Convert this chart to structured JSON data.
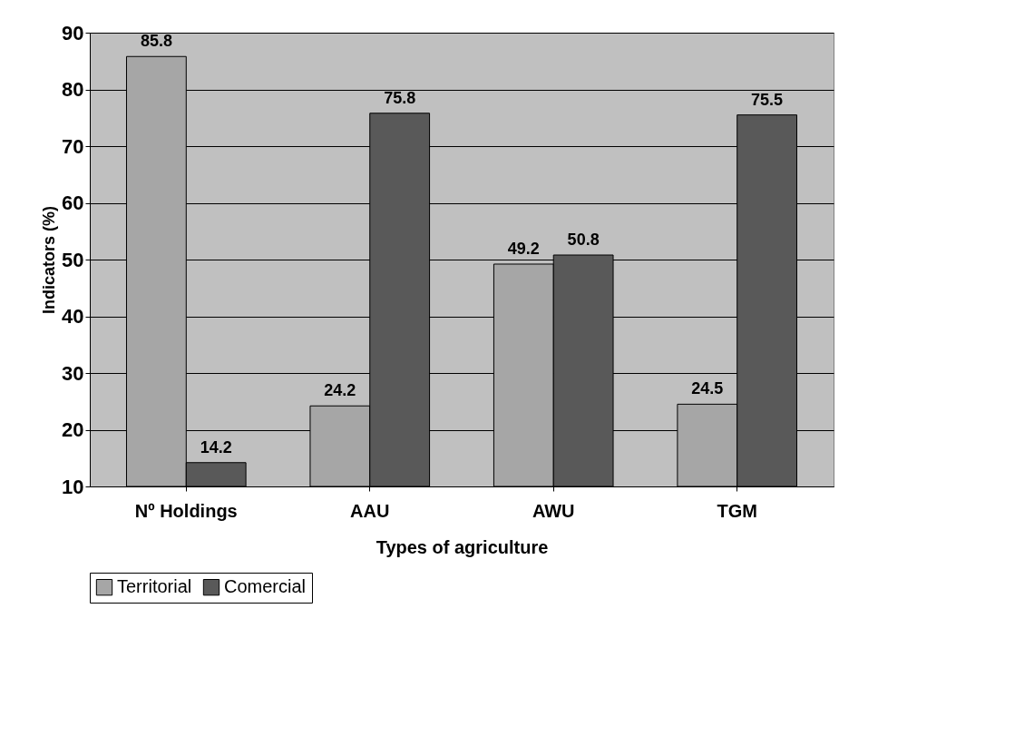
{
  "chart_data": {
    "type": "bar",
    "xlabel": "Types of agriculture",
    "ylabel": "Indicators (%)",
    "categories": [
      "Nº Holdings",
      "AAU",
      "AWU",
      "TGM"
    ],
    "series": [
      {
        "name": "Territorial",
        "color": "#a6a6a6",
        "values": [
          85.8,
          24.2,
          49.2,
          24.5
        ]
      },
      {
        "name": "Comercial",
        "color": "#595959",
        "values": [
          14.2,
          75.8,
          50.8,
          75.5
        ]
      }
    ],
    "ylim": [
      10,
      90
    ],
    "yticks": [
      10,
      20,
      30,
      40,
      50,
      60,
      70,
      80,
      90
    ],
    "grid": "y",
    "legend": "bottom",
    "data_labels": true
  }
}
